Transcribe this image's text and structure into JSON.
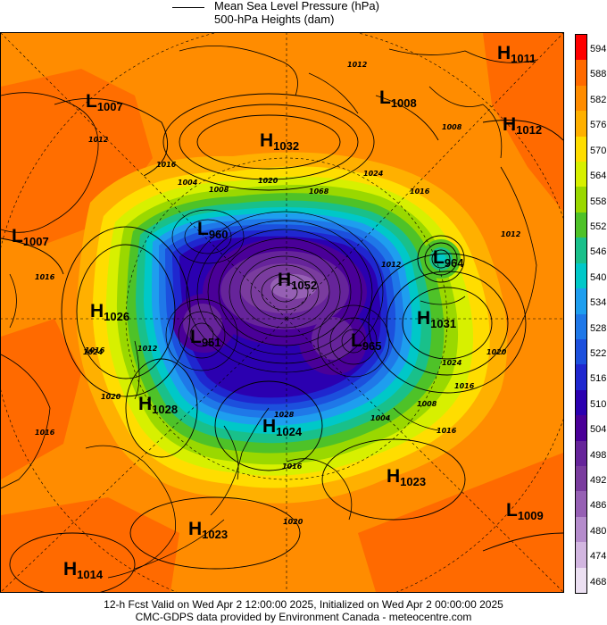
{
  "legend": {
    "line1": "Mean Sea Level Pressure (hPa)",
    "line2": "500-hPa Heights (dam)"
  },
  "colorbar": {
    "labels": [
      "594",
      "588",
      "582",
      "576",
      "570",
      "564",
      "558",
      "552",
      "546",
      "540",
      "534",
      "528",
      "522",
      "516",
      "510",
      "504",
      "498",
      "492",
      "486",
      "480",
      "474",
      "468"
    ],
    "colors": [
      "#ff0000",
      "#ff6a00",
      "#ff8c00",
      "#ffb000",
      "#ffdd00",
      "#d7f000",
      "#9ad800",
      "#4ec228",
      "#19c08a",
      "#00c8c8",
      "#1e9eef",
      "#1f78e8",
      "#1c50dd",
      "#1f27cf",
      "#2b00b0",
      "#4a0098",
      "#66249a",
      "#7a3c9e",
      "#9660b4",
      "#b58ccc",
      "#d2b6e0",
      "#ece0f2"
    ]
  },
  "pressure_systems": [
    {
      "type": "H",
      "value": "1011"
    },
    {
      "type": "L",
      "value": "1007"
    },
    {
      "type": "L",
      "value": "1008"
    },
    {
      "type": "H",
      "value": "1012"
    },
    {
      "type": "H",
      "value": "1032"
    },
    {
      "type": "L",
      "value": "1007"
    },
    {
      "type": "L",
      "value": "960"
    },
    {
      "type": "L",
      "value": "964"
    },
    {
      "type": "H",
      "value": "1026"
    },
    {
      "type": "H",
      "value": "1052"
    },
    {
      "type": "H",
      "value": "1031"
    },
    {
      "type": "L",
      "value": "951"
    },
    {
      "type": "L",
      "value": "965"
    },
    {
      "type": "H",
      "value": "1028"
    },
    {
      "type": "H",
      "value": "1024"
    },
    {
      "type": "H",
      "value": "1023"
    },
    {
      "type": "L",
      "value": "1009"
    },
    {
      "type": "H",
      "value": "1023"
    },
    {
      "type": "H",
      "value": "1014"
    }
  ],
  "isobar_labels": [
    "1012",
    "1008",
    "1016",
    "1024",
    "1004",
    "1008",
    "1020",
    "1068",
    "1016",
    "1012",
    "1016",
    "1012",
    "1016",
    "1024",
    "1020",
    "1016",
    "1004",
    "1012",
    "1016",
    "1020",
    "1016",
    "1008",
    "1012",
    "1016",
    "1024",
    "1028",
    "1020"
  ],
  "footer": {
    "line1": "12-h Fcst Valid on Wed Apr  2 12:00:00 2025, Initialized on Wed Apr  2 00:00:00 2025",
    "line2": "CMC-GDPS data provided by Environment Canada - meteocentre.com"
  }
}
